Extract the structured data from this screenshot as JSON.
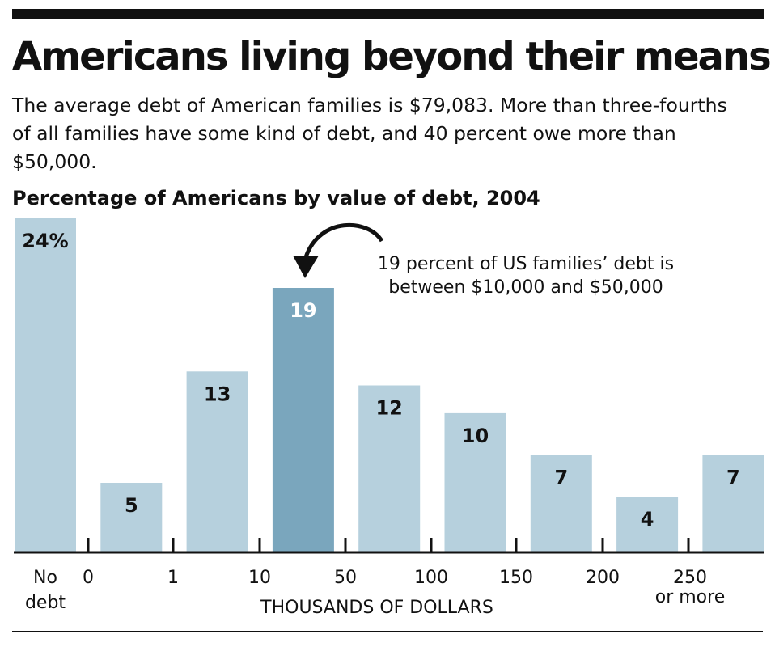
{
  "header": {
    "title": "Americans living beyond their means",
    "subtitle": "The average debt of American families is $79,083. More than three-fourths of all families have some kind of debt, and 40 percent owe more than $50,000."
  },
  "colors": {
    "bar": "#b6d0dd",
    "highlight": "#7aa6bd",
    "text_dark": "#111111",
    "text_light": "#ffffff"
  },
  "chart_data": {
    "type": "bar",
    "title": "Percentage of Americans by value of debt, 2004",
    "xlabel": "THOUSANDS OF DOLLARS",
    "ylabel": "",
    "ylim": [
      0,
      24
    ],
    "unit": "%",
    "grid": false,
    "categories": [
      "No debt",
      "0–1",
      "1–10",
      "10–50",
      "50–100",
      "100–150",
      "150–200",
      "200–250",
      "250 or more"
    ],
    "values": [
      24,
      5,
      13,
      19,
      12,
      10,
      7,
      4,
      7
    ],
    "value_labels": [
      "24%",
      "5",
      "13",
      "19",
      "12",
      "10",
      "7",
      "4",
      "7"
    ],
    "highlight_index": 3,
    "tick_labels": [
      {
        "line1": "No",
        "line2": "debt"
      },
      {
        "line1": "0"
      },
      {
        "line1": "1"
      },
      {
        "line1": "10"
      },
      {
        "line1": "50"
      },
      {
        "line1": "100"
      },
      {
        "line1": "150"
      },
      {
        "line1": "200"
      },
      {
        "line1": "250",
        "line2": "or more"
      }
    ],
    "annotation": {
      "lines": [
        "19 percent of US families’ debt is",
        "between $10,000 and $50,000"
      ]
    }
  }
}
